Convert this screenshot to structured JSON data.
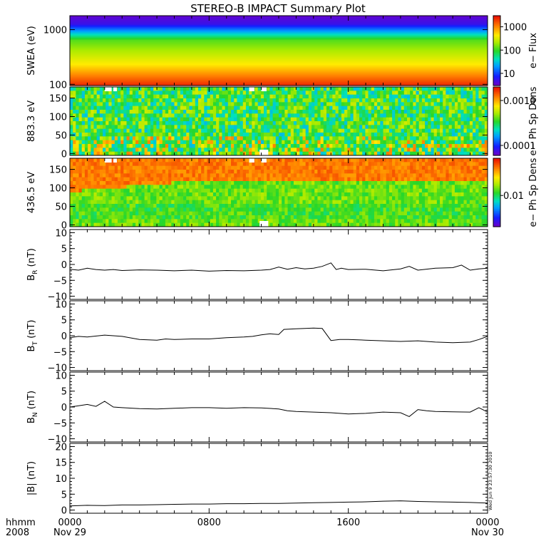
{
  "title": "STEREO-B IMPACT Summary Plot",
  "timestamp": "Wed Jun 9 23:57:30 2010",
  "x_axis": {
    "row1_label": "hhmm",
    "row2_label": "2008",
    "ticks": [
      {
        "hours": 0,
        "time": "0000",
        "date": "Nov 29"
      },
      {
        "hours": 8,
        "time": "0800",
        "date": ""
      },
      {
        "hours": 16,
        "time": "1600",
        "date": ""
      },
      {
        "hours": 24,
        "time": "0000",
        "date": "Nov 30"
      }
    ],
    "range_hours": [
      0,
      24
    ]
  },
  "chart_data": [
    {
      "type": "heatmap",
      "name": "swea",
      "ylabel": "SWEA (eV)",
      "yscale": "log",
      "ylim": [
        95,
        1800
      ],
      "yticks": [
        {
          "v": 100,
          "t": "100"
        },
        {
          "v": 1000,
          "t": "1000"
        }
      ],
      "colorbar": {
        "label": "e− Flux",
        "scale": "log",
        "range": [
          3,
          3000
        ],
        "ticks": [
          {
            "v": 10,
            "t": "10"
          },
          {
            "v": 100,
            "t": "100"
          },
          {
            "v": 1000,
            "t": "1000"
          }
        ]
      }
    },
    {
      "type": "heatmap",
      "name": "pad883",
      "ylabel": "883.3 eV",
      "ylim": [
        -5,
        180
      ],
      "yticks": [
        {
          "v": 0,
          "t": "0"
        },
        {
          "v": 50,
          "t": "50"
        },
        {
          "v": 100,
          "t": "100"
        },
        {
          "v": 150,
          "t": "150"
        }
      ],
      "colorbar": {
        "label": "e− Ph Sp Dens",
        "scale": "log",
        "range": [
          6e-05,
          0.002
        ],
        "ticks": [
          {
            "v": 0.0001,
            "t": "0.0001"
          },
          {
            "v": 0.001,
            "t": "0.0010"
          }
        ]
      }
    },
    {
      "type": "heatmap",
      "name": "pad436",
      "ylabel": "436.5 eV",
      "ylim": [
        -5,
        180
      ],
      "yticks": [
        {
          "v": 0,
          "t": "0"
        },
        {
          "v": 50,
          "t": "50"
        },
        {
          "v": 100,
          "t": "100"
        },
        {
          "v": 150,
          "t": "150"
        }
      ],
      "colorbar": {
        "label": "e− Ph Sp Dens",
        "scale": "log",
        "range": [
          0.0035,
          0.035
        ],
        "ticks": [
          {
            "v": 0.01,
            "t": "0.01"
          }
        ]
      }
    },
    {
      "type": "line",
      "name": "br",
      "ylabel_main": "B",
      "ylabel_sub": "R",
      "ylabel_unit": " (nT)",
      "ylim": [
        -11,
        11
      ],
      "yticks": [
        {
          "v": -10,
          "t": "−10"
        },
        {
          "v": -5,
          "t": "−5"
        },
        {
          "v": 0,
          "t": "0"
        },
        {
          "v": 5,
          "t": "5"
        },
        {
          "v": 10,
          "t": "10"
        }
      ],
      "x": [
        0,
        0.5,
        1,
        1.5,
        2,
        2.5,
        3,
        4,
        5,
        6,
        7,
        8,
        9,
        10,
        11,
        11.5,
        12,
        12.5,
        13,
        13.5,
        14,
        14.5,
        15,
        15.3,
        15.6,
        16,
        17,
        18,
        19,
        19.5,
        20,
        21,
        22,
        22.5,
        23,
        23.5,
        24
      ],
      "y": [
        -1.5,
        -1.8,
        -1.2,
        -1.6,
        -1.8,
        -1.6,
        -1.9,
        -1.7,
        -1.8,
        -2.0,
        -1.8,
        -2.1,
        -1.9,
        -2.0,
        -1.8,
        -1.6,
        -0.8,
        -1.5,
        -1.0,
        -1.4,
        -1.2,
        -0.6,
        0.5,
        -1.6,
        -1.2,
        -1.6,
        -1.5,
        -2.0,
        -1.4,
        -0.6,
        -1.8,
        -1.2,
        -1.0,
        -0.2,
        -1.8,
        -1.4,
        -1.2
      ]
    },
    {
      "type": "line",
      "name": "bt",
      "ylabel_main": "B",
      "ylabel_sub": "T",
      "ylabel_unit": " (nT)",
      "ylim": [
        -11,
        11
      ],
      "yticks": [
        {
          "v": -10,
          "t": "−10"
        },
        {
          "v": -5,
          "t": "−5"
        },
        {
          "v": 0,
          "t": "0"
        },
        {
          "v": 5,
          "t": "5"
        },
        {
          "v": 10,
          "t": "10"
        }
      ],
      "x": [
        0,
        0.5,
        1,
        2,
        3,
        4,
        5,
        5.5,
        6,
        7,
        8,
        9,
        10,
        10.5,
        11,
        11.5,
        12,
        12.3,
        13,
        14,
        14.5,
        15,
        15.5,
        16,
        17,
        18,
        19,
        20,
        21,
        22,
        23,
        23.5,
        24
      ],
      "y": [
        -0.6,
        -0.2,
        -0.4,
        0.2,
        -0.2,
        -1.2,
        -1.4,
        -1.0,
        -1.2,
        -1.0,
        -1.0,
        -0.6,
        -0.4,
        -0.2,
        0.3,
        0.6,
        0.4,
        2.0,
        2.2,
        2.4,
        2.3,
        -1.5,
        -1.2,
        -1.2,
        -1.4,
        -1.6,
        -1.8,
        -1.6,
        -2.0,
        -2.2,
        -2.0,
        -1.2,
        -0.2
      ]
    },
    {
      "type": "line",
      "name": "bn",
      "ylabel_main": "B",
      "ylabel_sub": "N",
      "ylabel_unit": " (nT)",
      "ylim": [
        -11,
        11
      ],
      "yticks": [
        {
          "v": -10,
          "t": "−10"
        },
        {
          "v": -5,
          "t": "−5"
        },
        {
          "v": 0,
          "t": "0"
        },
        {
          "v": 5,
          "t": "5"
        },
        {
          "v": 10,
          "t": "10"
        }
      ],
      "x": [
        0,
        0.5,
        1,
        1.5,
        2,
        2.5,
        3,
        4,
        5,
        6,
        7,
        8,
        9,
        10,
        11,
        12,
        12.5,
        13,
        14,
        15,
        16,
        17,
        18,
        19,
        19.5,
        20,
        20.5,
        21,
        22,
        23,
        23.5,
        24
      ],
      "y": [
        0.0,
        0.4,
        0.8,
        0.2,
        1.8,
        0.0,
        -0.2,
        -0.5,
        -0.6,
        -0.4,
        -0.2,
        -0.2,
        -0.4,
        -0.2,
        -0.3,
        -0.6,
        -1.2,
        -1.4,
        -1.6,
        -1.8,
        -2.2,
        -2.0,
        -1.6,
        -1.8,
        -3.0,
        -0.8,
        -1.2,
        -1.4,
        -1.5,
        -1.6,
        -0.2,
        -1.6
      ]
    },
    {
      "type": "line",
      "name": "bmag",
      "ylabel_main": "|B|",
      "ylabel_sub": "",
      "ylabel_unit": " (nT)",
      "ylim": [
        -1,
        21
      ],
      "yticks": [
        {
          "v": 0,
          "t": "0"
        },
        {
          "v": 5,
          "t": "5"
        },
        {
          "v": 10,
          "t": "10"
        },
        {
          "v": 15,
          "t": "15"
        },
        {
          "v": 20,
          "t": "20"
        }
      ],
      "x": [
        0,
        1,
        2,
        3,
        4,
        5,
        6,
        7,
        8,
        9,
        10,
        11,
        12,
        13,
        14,
        15,
        16,
        17,
        18,
        19,
        20,
        21,
        22,
        23,
        24
      ],
      "y": [
        1.3,
        1.5,
        1.4,
        1.6,
        1.6,
        1.7,
        1.8,
        1.9,
        1.9,
        2.0,
        2.0,
        2.1,
        2.1,
        2.2,
        2.3,
        2.4,
        2.5,
        2.6,
        2.8,
        2.9,
        2.7,
        2.6,
        2.5,
        2.4,
        2.2
      ]
    }
  ]
}
